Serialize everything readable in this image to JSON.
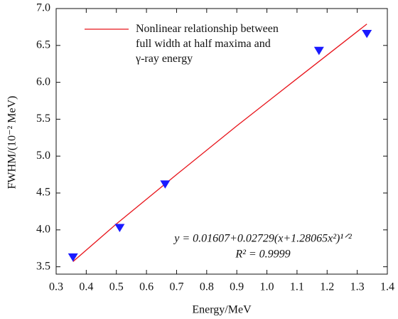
{
  "chart_data": {
    "type": "scatter",
    "xlabel": "Energy/MeV",
    "ylabel": "FWHM/(10⁻² MeV)",
    "xlim": [
      0.3,
      1.4
    ],
    "ylim": [
      3.4,
      7.0
    ],
    "xticks": [
      0.3,
      0.4,
      0.5,
      0.6,
      0.7,
      0.8,
      0.9,
      {
        "value": 1.0,
        "label": "1.0"
      },
      1.1,
      1.2,
      1.3,
      1.4
    ],
    "yticks": [
      3.5,
      {
        "value": 4.0,
        "label": "4.0"
      },
      4.5,
      {
        "value": 5.0,
        "label": "5.0"
      },
      5.5,
      {
        "value": 6.0,
        "label": "6.0"
      },
      6.5,
      {
        "value": 7.0,
        "label": "7.0"
      }
    ],
    "legend": "upper left",
    "series": [
      {
        "name": "Nonlinear relationship between full width at half maxima and γ-ray energy",
        "type": "line",
        "color": "#e8141b",
        "x": [
          0.356,
          0.5,
          0.7,
          0.9,
          1.1,
          1.332
        ],
        "values": [
          3.57,
          4.08,
          4.75,
          5.41,
          6.05,
          6.79
        ]
      },
      {
        "type": "scatter",
        "color": "#1a1aff",
        "x": [
          0.356,
          0.511,
          0.662,
          1.173,
          1.332
        ],
        "values": [
          3.63,
          4.03,
          4.62,
          6.43,
          6.66
        ]
      }
    ],
    "annotations": [
      "y = 0.01607+0.02729(x+1.28065x²)¹ᐟ²",
      "R² = 0.9999"
    ]
  }
}
